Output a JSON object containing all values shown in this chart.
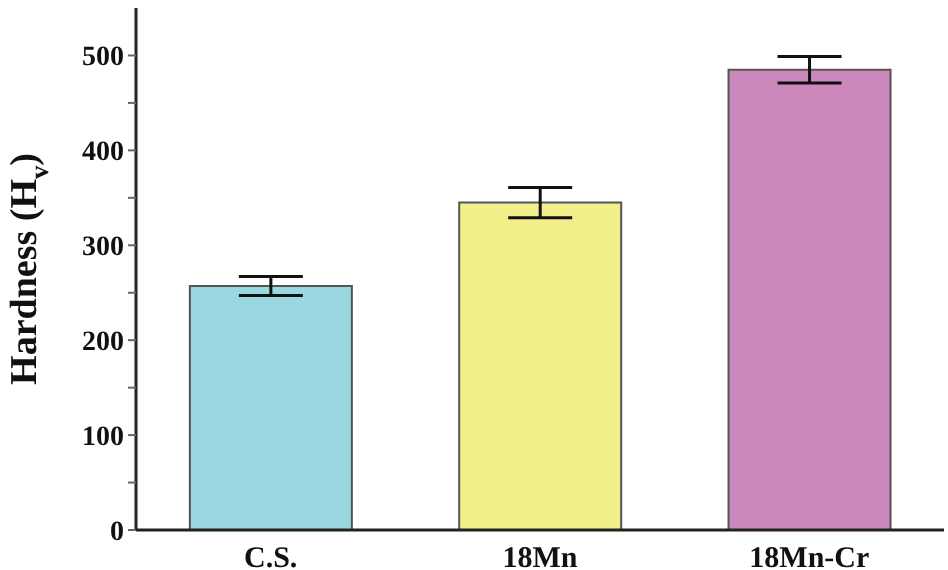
{
  "chart_data": {
    "type": "bar",
    "ylabel": "Hardness (H$_{v}$)",
    "categories": [
      "C.S.",
      "18Mn",
      "18Mn-Cr"
    ],
    "values": [
      257,
      345,
      485
    ],
    "errors": [
      10,
      16,
      14
    ],
    "colors": [
      "#99d8e0",
      "#f2ee8a",
      "#cc88bb"
    ],
    "ylim": [
      0,
      550
    ],
    "yticks": [
      0,
      {
        "value": 50,
        "label": null
      },
      100,
      {
        "value": 150,
        "label": null
      },
      200,
      {
        "value": 250,
        "label": null
      },
      300,
      {
        "value": 350,
        "label": null
      },
      400,
      {
        "value": 450,
        "label": null
      },
      500
    ],
    "grid": false,
    "legend": false
  }
}
